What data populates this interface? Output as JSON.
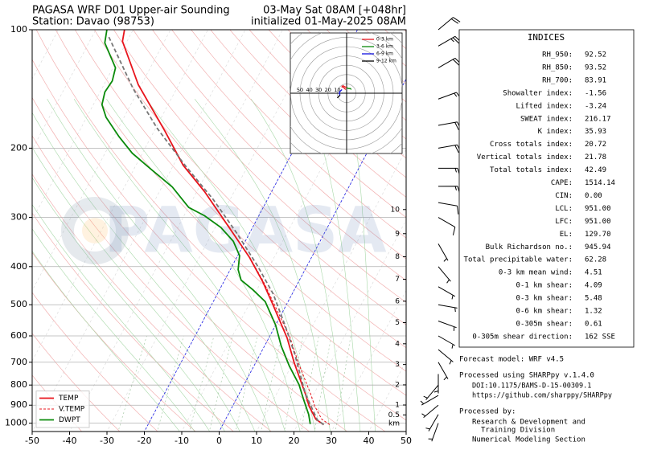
{
  "chart_data": {
    "type": "skewt",
    "title": "PAGASA WRF D01 Upper-air Sounding",
    "subtitle": "Station: Davao (98753)",
    "title_right": "03-May Sat 08AM [+048hr]",
    "subtitle_right": "initialized 01-May-2025 08AM",
    "watermark": "PAGASA",
    "xlim": [
      -50,
      50
    ],
    "xticks": [
      -50,
      -40,
      -30,
      -20,
      -10,
      0,
      10,
      20,
      30,
      40,
      50
    ],
    "ylim": [
      1050,
      100
    ],
    "yticks": [
      100,
      200,
      300,
      400,
      500,
      600,
      700,
      800,
      900,
      1000
    ],
    "log_y": true,
    "grid": true,
    "legend": "lower left",
    "series": [
      {
        "name": "TEMP",
        "color": "#e8141c",
        "linestyle": "solid",
        "pressure": [
          1009,
          977,
          906,
          844,
          702,
          607,
          501,
          437,
          379,
          329,
          258,
          221,
          181,
          138,
          107,
          100
        ],
        "temperature": [
          27.0,
          24.1,
          20.5,
          17.8,
          10.3,
          4.9,
          -3.5,
          -9.6,
          -16.6,
          -24.4,
          -37.9,
          -47.4,
          -57.1,
          -70.8,
          -81.2,
          -82.3
        ]
      },
      {
        "name": "V.TEMP",
        "color": "#e8141c",
        "linestyle": "dashed",
        "pressure": [
          1009,
          977,
          906,
          844,
          702,
          607,
          501,
          437,
          379,
          329
        ],
        "temperature": [
          28.6,
          25.7,
          22.0,
          19.2,
          11.4,
          5.7,
          -3.1,
          -9.4,
          -16.5,
          -24.4
        ]
      },
      {
        "name": "DWPT",
        "color": "#0a8a0a",
        "linestyle": "solid",
        "pressure": [
          1005,
          950,
          872,
          798,
          716,
          637,
          563,
          491,
          458,
          433,
          407,
          375,
          345,
          318,
          297,
          283,
          251,
          228,
          206,
          187,
          167,
          155,
          144,
          135,
          125,
          108,
          100
        ],
        "temperature": [
          23.3,
          21.5,
          18.1,
          14.7,
          9.5,
          4.5,
          0.0,
          -6.1,
          -11.1,
          -15.6,
          -17.9,
          -19.5,
          -23.2,
          -28.5,
          -34.5,
          -39.9,
          -47.2,
          -54.8,
          -62.7,
          -68.6,
          -74.8,
          -77.7,
          -78.7,
          -78.3,
          -79.3,
          -85.7,
          -87.0
        ]
      },
      {
        "color": "#777777",
        "linestyle": "dashed",
        "pressure": [
          1009,
          981,
          844,
          667,
          566,
          469,
          397,
          329,
          270,
          221,
          178,
          141,
          104
        ],
        "temperature": [
          27.0,
          24.6,
          17.8,
          9.2,
          2.7,
          -5.1,
          -13.4,
          -23.4,
          -34.5,
          -46.9,
          -59.6,
          -71.7,
          -85.6
        ]
      }
    ],
    "height_ticks": [
      0.5,
      1,
      2,
      3,
      4,
      5,
      6,
      7,
      8,
      9,
      10
    ],
    "height_unit": "km",
    "wind": {
      "pressure": [
        1000,
        950,
        900,
        850,
        800,
        750,
        700,
        650,
        600,
        550,
        500,
        450,
        400,
        350,
        300,
        275,
        250,
        225,
        200,
        175,
        150,
        125,
        110,
        100
      ],
      "direction": [
        200,
        210,
        230,
        240,
        220,
        180,
        150,
        130,
        120,
        110,
        100,
        120,
        140,
        150,
        120,
        100,
        90,
        90,
        80,
        80,
        70,
        60,
        60,
        50
      ],
      "speed": [
        5,
        6,
        8,
        8,
        6,
        5,
        5,
        5,
        7,
        8,
        8,
        7,
        6,
        8,
        10,
        12,
        15,
        18,
        20,
        20,
        18,
        22,
        25,
        20
      ]
    },
    "hodograph": {
      "ring_labels": [
        50,
        40,
        30,
        20,
        10
      ],
      "segments": [
        {
          "name": "0-3 km",
          "color": "#e8141c",
          "u": [
            -1,
            -3,
            -5,
            -4,
            -2,
            0
          ],
          "v": [
            4,
            6,
            7,
            8,
            7,
            6
          ]
        },
        {
          "name": "3-6 km",
          "color": "#0a8a0a",
          "u": [
            0,
            2,
            4,
            5
          ],
          "v": [
            6,
            5,
            5,
            4
          ]
        },
        {
          "name": "6-9 km",
          "color": "#1010e0",
          "u": [
            -5,
            -7,
            -8,
            -7
          ],
          "v": [
            4,
            2,
            0,
            -2
          ]
        },
        {
          "name": "9-12 km",
          "color": "#000000",
          "u": [
            -7,
            -9,
            -10
          ],
          "v": [
            -2,
            -4,
            -5
          ]
        }
      ]
    }
  },
  "indices": {
    "title": "INDICES",
    "rows": [
      [
        "RH_950:",
        "92.52"
      ],
      [
        "RH_850:",
        "93.52"
      ],
      [
        "RH_700:",
        "83.91"
      ],
      [
        "Showalter index:",
        "-1.56"
      ],
      [
        "Lifted index:",
        "-3.24"
      ],
      [
        "SWEAT index:",
        "216.17"
      ],
      [
        "K index:",
        "35.93"
      ],
      [
        "Cross totals index:",
        "20.72"
      ],
      [
        "Vertical totals index:",
        "21.78"
      ],
      [
        "Total totals index:",
        "42.49"
      ],
      [
        "CAPE:",
        "1514.14"
      ],
      [
        "CIN:",
        "0.00"
      ],
      [
        "LCL:",
        "951.00"
      ],
      [
        "LFC:",
        "951.00"
      ],
      [
        "EL:",
        "129.70"
      ],
      [
        "Bulk Richardson no.:",
        "945.94"
      ],
      [
        "Total precipitable water:",
        "62.28"
      ],
      [
        "0-3 km mean wind:",
        "4.51"
      ],
      [
        "0-1 km shear:",
        "4.09"
      ],
      [
        "0-3 km shear:",
        "5.48"
      ],
      [
        "0-6 km shear:",
        "1.32"
      ],
      [
        "0-305m shear:",
        "0.61"
      ],
      [
        "0-305m shear direction:",
        "162 SSE"
      ]
    ]
  },
  "notes": [
    "Forecast model: WRF v4.5",
    "Processed using SHARPpy v.1.4.0",
    "DOI:10.1175/BAMS-D-15-00309.1",
    "https://github.com/sharppy/SHARPpy",
    "Processed by:",
    "Research & Development and",
    "Training Division",
    "Numerical Modeling Section"
  ]
}
